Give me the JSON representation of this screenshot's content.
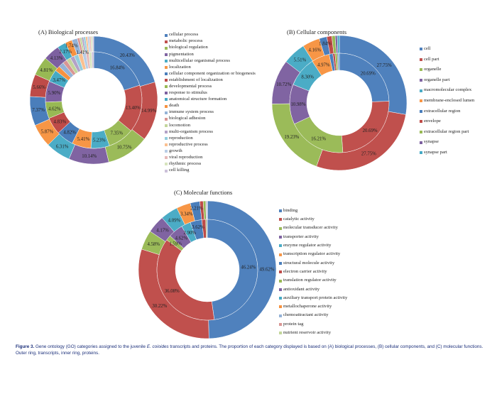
{
  "palette": [
    "#4F81BD",
    "#C0504D",
    "#9BBB59",
    "#8064A2",
    "#4BACC6",
    "#F79646",
    "#4A7EBB",
    "#BE4B48",
    "#98B954",
    "#7D60A0",
    "#46AAC5",
    "#F69240",
    "#95B3D7",
    "#D99694",
    "#C3D69B",
    "#B3A2C7",
    "#93CDDD",
    "#FAC090",
    "#B9CDE5",
    "#E6B9B8",
    "#D7E4BD",
    "#CCC1DA",
    "#B7DEE8"
  ],
  "chart_data": [
    {
      "type": "pie",
      "style": "donut",
      "title": "(A) Biological processes",
      "legend_position": "right",
      "categories": [
        "cellular process",
        "metabolic process",
        "biological regulation",
        "pigmentation",
        "multicellular organismal process",
        "localization",
        "cellular component organization or biogenesis",
        "establishment of localization",
        "developmental process",
        "response to stimulus",
        "anatomical structure formation",
        "death",
        "immune system process",
        "biological adhesion",
        "locomotion",
        "multi-organism process",
        "reproduction",
        "reproductive process",
        "growth",
        "viral reproduction",
        "rhythmic process",
        "cell killing"
      ],
      "series": [
        {
          "name": "transcripts",
          "ring": "outer",
          "values": [
            20.43,
            14.99,
            10.75,
            10.14,
            6.31,
            5.87,
            7.37,
            5.66,
            4.81,
            4.13,
            2.17,
            1.74,
            1.41,
            0.6,
            0.5,
            0.5,
            0.5,
            0.5,
            0.45,
            0.4,
            0.4,
            0.32
          ],
          "labels": [
            "20.43%",
            "14.99%",
            "10.75%",
            "10.14%",
            "6.31%",
            "5.87%",
            "7.37%",
            "5.66%",
            "4.81%",
            "4.13%",
            "2.17%",
            "1.74%",
            "1.41%",
            null,
            null,
            null,
            null,
            null,
            null,
            null,
            null,
            null
          ]
        },
        {
          "name": "proteins",
          "ring": "inner",
          "values": [
            16.84,
            13.4,
            7.35,
            0,
            5.23,
            5.41,
            4.82,
            4.83,
            4.62,
            5.9,
            3.47,
            1.5,
            1.5,
            1.2,
            1.2,
            1.2,
            1.2,
            1.2,
            1.0,
            0.8,
            0.8,
            0.6
          ],
          "labels": [
            "16.84%",
            "13.40%",
            "7.35%",
            null,
            "5.23%",
            "5.41%",
            "4.82%",
            "4.83%",
            "4.62%",
            "5.90%",
            "3.47%",
            null,
            null,
            null,
            null,
            null,
            null,
            null,
            null,
            null,
            null,
            null
          ]
        }
      ]
    },
    {
      "type": "pie",
      "style": "donut",
      "title": "(B) Cellular components",
      "legend_position": "right",
      "categories": [
        "cell",
        "cell part",
        "organelle",
        "organelle part",
        "macromolecular complex",
        "membrane-enclosed lumen",
        "extracellular region",
        "envelope",
        "extracellular region part",
        "synapse",
        "synapse part"
      ],
      "series": [
        {
          "name": "transcripts",
          "ring": "outer",
          "values": [
            27.75,
            27.75,
            19.23,
            10.72,
            5.51,
            4.16,
            1.84,
            1.2,
            0.8,
            0.5,
            0.5
          ],
          "labels": [
            "27.75%",
            "27.75%",
            "19.23%",
            "10.72%",
            "5.51%",
            "4.16%",
            "1.84%",
            null,
            null,
            null,
            null
          ]
        },
        {
          "name": "proteins",
          "ring": "inner",
          "values": [
            20.69,
            20.69,
            16.21,
            10.98,
            8.3,
            4.97,
            1.0,
            0.6,
            0.6,
            0.3,
            0.3
          ],
          "labels": [
            "20.69%",
            "20.69%",
            "16.21%",
            "10.98%",
            "8.30%",
            "4.97%",
            null,
            null,
            null,
            null,
            null
          ]
        }
      ]
    },
    {
      "type": "pie",
      "style": "donut",
      "title": "(C) Molecular functions",
      "legend_position": "right",
      "categories": [
        "binding",
        "catalytic activity",
        "molecular transducer activity",
        "transporter activity",
        "enzyme regulator activity",
        "transcription regulator activity",
        "structural molecule activity",
        "electron carrier activity",
        "translation regulator activity",
        "antioxidant activity",
        "auxiliary transport protein activity",
        "metallochaperone activity",
        "chemoattractant activity",
        "protein tag",
        "nutrient reservoir activity"
      ],
      "series": [
        {
          "name": "transcripts",
          "ring": "outer",
          "values": [
            49.62,
            30.22,
            4.58,
            4.17,
            4.09,
            3.34,
            2.21,
            0.8,
            0.6,
            0.2,
            0.05,
            0.03,
            0.03,
            0.03,
            0.03
          ],
          "labels": [
            "49.62%",
            "30.22%",
            "4.58%",
            "4.17%",
            "4.09%",
            "3.34%",
            "2.21%",
            null,
            null,
            null,
            null,
            null,
            null,
            null,
            null
          ]
        },
        {
          "name": "proteins",
          "ring": "inner",
          "values": [
            46.24,
            36.08,
            1.59,
            4.62,
            2.9,
            0,
            3.62,
            1.2,
            0.3,
            0.2,
            0,
            0,
            0,
            0,
            0
          ],
          "labels": [
            "46.24%",
            "36.08%",
            "1.59%",
            "4.62%",
            "2.90%",
            null,
            "3.62%",
            null,
            null,
            null,
            null,
            null,
            null,
            null,
            null
          ]
        }
      ]
    }
  ],
  "caption": {
    "label": "Figure 3.",
    "text_before_species": "Gene ontology (GO) categories assigned to the juvenile",
    "species": "E. coioides",
    "text_after_species": "transcripts and proteins. The proportion of each category displayed is based on (A) biological processes, (B) cellular components, and (C) molecular functions. Outer ring, transcripts, inner ring, proteins."
  }
}
